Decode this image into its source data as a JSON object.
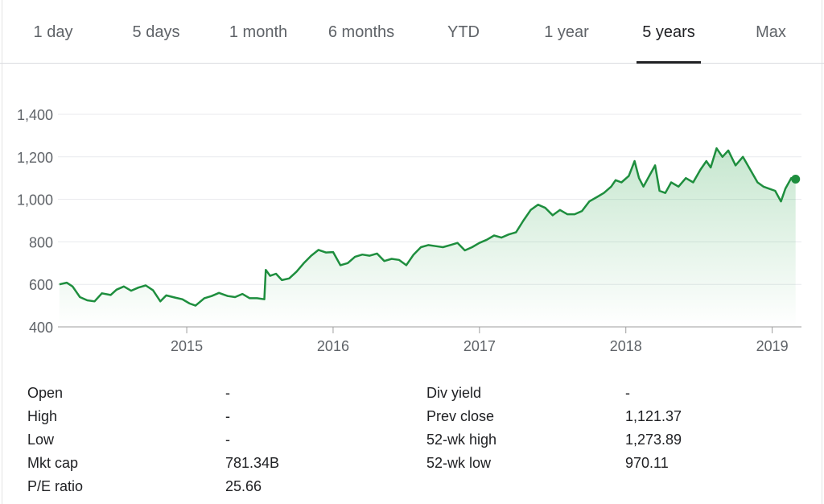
{
  "tabs": [
    "1 day",
    "5 days",
    "1 month",
    "6 months",
    "YTD",
    "1 year",
    "5 years",
    "Max"
  ],
  "active_tab": "5 years",
  "chart_data": {
    "type": "area",
    "title": "",
    "xlabel": "",
    "ylabel": "",
    "ylim": [
      400,
      1400
    ],
    "yticks": [
      400,
      600,
      800,
      1000,
      1200,
      1400
    ],
    "ytick_labels": [
      "400",
      "600",
      "800",
      "1,000",
      "1,200",
      "1,400"
    ],
    "xticks": [
      2015,
      2016,
      2017,
      2018,
      2019
    ],
    "xtick_labels": [
      "2015",
      "2016",
      "2017",
      "2018",
      "2019"
    ],
    "xlim": [
      2014.12,
      2019.2
    ],
    "grid": "horizontal",
    "line_color": "#1e8e3e",
    "fill_color": "#34a853",
    "series": [
      {
        "values": [
          [
            2014.13,
            600
          ],
          [
            2014.18,
            608
          ],
          [
            2014.22,
            590
          ],
          [
            2014.27,
            540
          ],
          [
            2014.32,
            525
          ],
          [
            2014.37,
            520
          ],
          [
            2014.42,
            558
          ],
          [
            2014.48,
            550
          ],
          [
            2014.52,
            575
          ],
          [
            2014.57,
            590
          ],
          [
            2014.62,
            570
          ],
          [
            2014.67,
            585
          ],
          [
            2014.72,
            595
          ],
          [
            2014.77,
            572
          ],
          [
            2014.82,
            520
          ],
          [
            2014.86,
            548
          ],
          [
            2014.92,
            538
          ],
          [
            2014.97,
            530
          ],
          [
            2015.02,
            510
          ],
          [
            2015.06,
            500
          ],
          [
            2015.12,
            535
          ],
          [
            2015.17,
            545
          ],
          [
            2015.22,
            560
          ],
          [
            2015.28,
            545
          ],
          [
            2015.33,
            540
          ],
          [
            2015.38,
            555
          ],
          [
            2015.43,
            535
          ],
          [
            2015.48,
            535
          ],
          [
            2015.53,
            530
          ],
          [
            2015.54,
            668
          ],
          [
            2015.57,
            640
          ],
          [
            2015.61,
            650
          ],
          [
            2015.65,
            620
          ],
          [
            2015.7,
            628
          ],
          [
            2015.75,
            660
          ],
          [
            2015.8,
            700
          ],
          [
            2015.85,
            735
          ],
          [
            2015.9,
            762
          ],
          [
            2015.95,
            750
          ],
          [
            2016.0,
            752
          ],
          [
            2016.05,
            690
          ],
          [
            2016.1,
            700
          ],
          [
            2016.15,
            730
          ],
          [
            2016.2,
            740
          ],
          [
            2016.25,
            735
          ],
          [
            2016.3,
            745
          ],
          [
            2016.35,
            710
          ],
          [
            2016.4,
            720
          ],
          [
            2016.45,
            715
          ],
          [
            2016.5,
            690
          ],
          [
            2016.55,
            740
          ],
          [
            2016.6,
            775
          ],
          [
            2016.65,
            785
          ],
          [
            2016.7,
            780
          ],
          [
            2016.75,
            775
          ],
          [
            2016.8,
            785
          ],
          [
            2016.85,
            795
          ],
          [
            2016.9,
            760
          ],
          [
            2016.95,
            775
          ],
          [
            2017.0,
            795
          ],
          [
            2017.05,
            810
          ],
          [
            2017.1,
            830
          ],
          [
            2017.15,
            820
          ],
          [
            2017.2,
            835
          ],
          [
            2017.25,
            845
          ],
          [
            2017.3,
            900
          ],
          [
            2017.35,
            950
          ],
          [
            2017.4,
            975
          ],
          [
            2017.45,
            960
          ],
          [
            2017.5,
            925
          ],
          [
            2017.55,
            950
          ],
          [
            2017.6,
            930
          ],
          [
            2017.65,
            930
          ],
          [
            2017.7,
            945
          ],
          [
            2017.75,
            990
          ],
          [
            2017.8,
            1010
          ],
          [
            2017.85,
            1030
          ],
          [
            2017.9,
            1060
          ],
          [
            2017.93,
            1090
          ],
          [
            2017.97,
            1080
          ],
          [
            2018.02,
            1110
          ],
          [
            2018.06,
            1180
          ],
          [
            2018.09,
            1100
          ],
          [
            2018.12,
            1060
          ],
          [
            2018.16,
            1110
          ],
          [
            2018.2,
            1160
          ],
          [
            2018.23,
            1040
          ],
          [
            2018.27,
            1030
          ],
          [
            2018.31,
            1080
          ],
          [
            2018.36,
            1060
          ],
          [
            2018.41,
            1100
          ],
          [
            2018.46,
            1080
          ],
          [
            2018.51,
            1140
          ],
          [
            2018.55,
            1180
          ],
          [
            2018.58,
            1150
          ],
          [
            2018.62,
            1240
          ],
          [
            2018.66,
            1200
          ],
          [
            2018.7,
            1230
          ],
          [
            2018.75,
            1160
          ],
          [
            2018.8,
            1200
          ],
          [
            2018.85,
            1140
          ],
          [
            2018.9,
            1080
          ],
          [
            2018.94,
            1060
          ],
          [
            2018.98,
            1050
          ],
          [
            2019.02,
            1040
          ],
          [
            2019.06,
            990
          ],
          [
            2019.09,
            1050
          ],
          [
            2019.13,
            1100
          ],
          [
            2019.16,
            1095
          ]
        ]
      }
    ]
  },
  "stats": {
    "left": [
      {
        "label": "Open",
        "value": "-"
      },
      {
        "label": "High",
        "value": "-"
      },
      {
        "label": "Low",
        "value": "-"
      },
      {
        "label": "Mkt cap",
        "value": "781.34B"
      },
      {
        "label": "P/E ratio",
        "value": "25.66"
      }
    ],
    "right": [
      {
        "label": "Div yield",
        "value": "-"
      },
      {
        "label": "Prev close",
        "value": "1,121.37"
      },
      {
        "label": "52-wk high",
        "value": "1,273.89"
      },
      {
        "label": "52-wk low",
        "value": "970.11"
      }
    ]
  }
}
